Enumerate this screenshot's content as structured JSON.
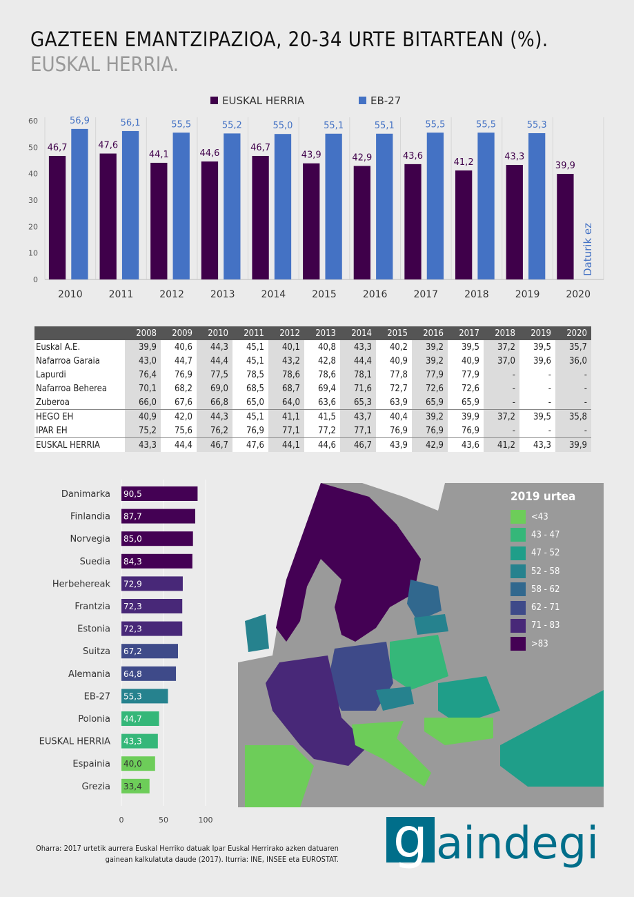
{
  "title": "GAZTEEN EMANTZIPAZIOA, 20-34 URTE BITARTEAN (%).",
  "subtitle": "EUSKAL HERRIA.",
  "colors": {
    "euskal_herria": "#3f004a",
    "eb27": "#4472c4"
  },
  "chart_data": [
    {
      "type": "bar",
      "categories": [
        "2010",
        "2011",
        "2012",
        "2013",
        "2014",
        "2015",
        "2016",
        "2017",
        "2018",
        "2019",
        "2020"
      ],
      "series": [
        {
          "name": "EUSKAL HERRIA",
          "values": [
            46.7,
            47.6,
            44.1,
            44.6,
            46.7,
            43.9,
            42.9,
            43.6,
            41.2,
            43.3,
            39.9
          ]
        },
        {
          "name": "EB-27",
          "values": [
            56.9,
            56.1,
            55.5,
            55.2,
            55.0,
            55.1,
            55.1,
            55.5,
            55.5,
            55.3,
            null
          ]
        }
      ],
      "yticks": [
        0,
        10,
        20,
        30,
        40,
        50,
        60
      ],
      "ylim": [
        0,
        60
      ],
      "annotation": "Daturik ez",
      "legend": "top",
      "grid": "vertical"
    },
    {
      "type": "table",
      "columns": [
        "2008",
        "2009",
        "2010",
        "2011",
        "2012",
        "2013",
        "2014",
        "2015",
        "2016",
        "2017",
        "2018",
        "2019",
        "2020"
      ],
      "rows": [
        {
          "label": "Euskal A.E.",
          "values": [
            "39,9",
            "40,6",
            "44,3",
            "45,1",
            "40,1",
            "40,8",
            "43,3",
            "40,2",
            "39,2",
            "39,5",
            "37,2",
            "39,5",
            "35,7"
          ]
        },
        {
          "label": "Nafarroa Garaia",
          "values": [
            "43,0",
            "44,7",
            "44,4",
            "45,1",
            "43,2",
            "42,8",
            "44,4",
            "40,9",
            "39,2",
            "40,9",
            "37,0",
            "39,6",
            "36,0"
          ]
        },
        {
          "label": "Lapurdi",
          "values": [
            "76,4",
            "76,9",
            "77,5",
            "78,5",
            "78,6",
            "78,6",
            "78,1",
            "77,8",
            "77,9",
            "77,9",
            "-",
            "-",
            "-"
          ]
        },
        {
          "label": "Nafarroa Beherea",
          "values": [
            "70,1",
            "68,2",
            "69,0",
            "68,5",
            "68,7",
            "69,4",
            "71,6",
            "72,7",
            "72,6",
            "72,6",
            "-",
            "-",
            "-"
          ]
        },
        {
          "label": "Zuberoa",
          "values": [
            "66,0",
            "67,6",
            "66,8",
            "65,0",
            "64,0",
            "63,6",
            "65,3",
            "63,9",
            "65,9",
            "65,9",
            "-",
            "-",
            "-"
          ]
        },
        {
          "label": "HEGO EH",
          "values": [
            "40,9",
            "42,0",
            "44,3",
            "45,1",
            "41,1",
            "41,5",
            "43,7",
            "40,4",
            "39,2",
            "39,9",
            "37,2",
            "39,5",
            "35,8"
          ]
        },
        {
          "label": "IPAR EH",
          "values": [
            "75,2",
            "75,6",
            "76,2",
            "76,9",
            "77,1",
            "77,2",
            "77,1",
            "76,9",
            "76,9",
            "76,9",
            "-",
            "-",
            "-"
          ]
        },
        {
          "label": "EUSKAL HERRIA",
          "values": [
            "43,3",
            "44,4",
            "46,7",
            "47,6",
            "44,1",
            "44,6",
            "46,7",
            "43,9",
            "42,9",
            "43,6",
            "41,2",
            "43,3",
            "39,9"
          ]
        }
      ]
    },
    {
      "type": "bar",
      "orientation": "horizontal",
      "categories": [
        "Danimarka",
        "Finlandia",
        "Norvegia",
        "Suedia",
        "Herbehereak",
        "Frantzia",
        "Estonia",
        "Suitza",
        "Alemania",
        "EB-27",
        "Polonia",
        "EUSKAL HERRIA",
        "Espainia",
        "Grezia"
      ],
      "values": [
        90.5,
        87.7,
        85.0,
        84.3,
        72.9,
        72.3,
        72.3,
        67.2,
        64.8,
        55.3,
        44.7,
        43.3,
        40.0,
        33.4
      ],
      "labels": [
        "90,5",
        "87,7",
        "85,0",
        "84,3",
        "72,9",
        "72,3",
        "72,3",
        "67,2",
        "64,8",
        "55,3",
        "44,7",
        "43,3",
        "40,0",
        "33,4"
      ],
      "xticks": [
        0,
        50,
        100
      ]
    }
  ],
  "map": {
    "legend_title": "2019 urtea",
    "classes": [
      {
        "label": "<43",
        "color": "#6dcd59"
      },
      {
        "label": "43 - 47",
        "color": "#35b779"
      },
      {
        "label": "47 - 52",
        "color": "#1f9e89"
      },
      {
        "label": "52 - 58",
        "color": "#26828e"
      },
      {
        "label": "58 - 62",
        "color": "#31688e"
      },
      {
        "label": "62 - 71",
        "color": "#3e4a89"
      },
      {
        "label": "71 - 83",
        "color": "#482878"
      },
      {
        "label": ">83",
        "color": "#440154"
      }
    ]
  },
  "note": [
    "Oharra: 2017 urtetik aurrera Euskal Herriko datuak Ipar Euskal Herrirako azken datuaren",
    "gainean kalkulatuta daude (2017). Iturria: INE, INSEE eta EUROSTAT."
  ],
  "logo": "gaindegia"
}
